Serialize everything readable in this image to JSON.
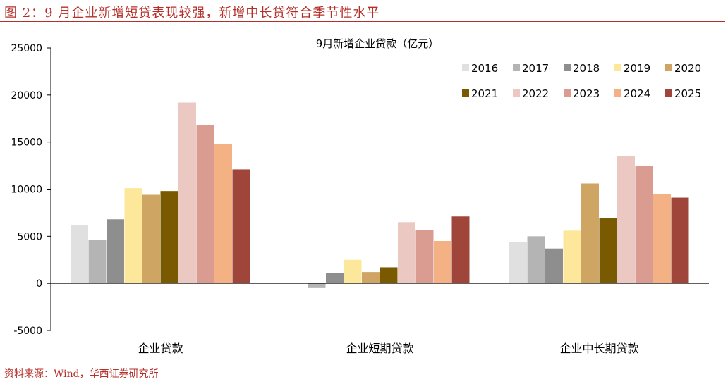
{
  "figure_title": "图 2：9 月企业新增短贷表现较强，新增中长贷符合季节性水平",
  "source_note": "资料来源：Wind，华西证券研究所",
  "chart_data": {
    "type": "bar",
    "title": "9月新增企业贷款（亿元）",
    "xlabel": "",
    "ylabel": "",
    "categories": [
      "企业贷款",
      "企业短期贷款",
      "企业中长期贷款"
    ],
    "ylim": [
      -5000,
      25000
    ],
    "yticks": [
      -5000,
      0,
      5000,
      10000,
      15000,
      20000,
      25000
    ],
    "grid": false,
    "legend_position": "top-right",
    "series": [
      {
        "name": "2016",
        "color": "#e0e0e0",
        "values": [
          6200,
          0,
          4400
        ]
      },
      {
        "name": "2017",
        "color": "#b4b4b4",
        "values": [
          4600,
          -500,
          5000
        ]
      },
      {
        "name": "2018",
        "color": "#8e8e8e",
        "values": [
          6800,
          1100,
          3700
        ]
      },
      {
        "name": "2019",
        "color": "#fde79a",
        "values": [
          10100,
          2500,
          5600
        ]
      },
      {
        "name": "2020",
        "color": "#cea562",
        "values": [
          9400,
          1200,
          10600
        ]
      },
      {
        "name": "2021",
        "color": "#7a5a00",
        "values": [
          9800,
          1700,
          6900
        ]
      },
      {
        "name": "2022",
        "color": "#ebc8c2",
        "values": [
          19200,
          6500,
          13500
        ]
      },
      {
        "name": "2023",
        "color": "#da9b90",
        "values": [
          16800,
          5700,
          12500
        ]
      },
      {
        "name": "2024",
        "color": "#f4b183",
        "values": [
          14800,
          4500,
          9500
        ]
      },
      {
        "name": "2025",
        "color": "#a0453a",
        "values": [
          12100,
          7100,
          9100
        ]
      }
    ]
  }
}
